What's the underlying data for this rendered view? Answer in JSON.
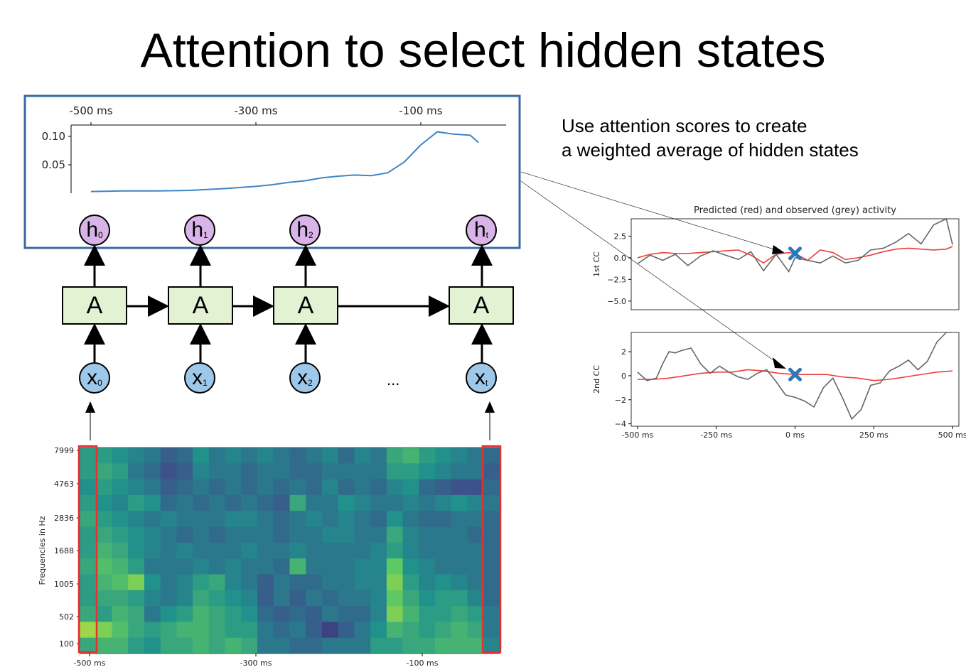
{
  "title": "Attention to select hidden states",
  "note": {
    "line1": "Use attention scores to create",
    "line2": "a weighted average of hidden states"
  },
  "rnn": {
    "hidden_labels": [
      "h0",
      "h1",
      "h2",
      "ht"
    ],
    "cell_label": "A",
    "input_labels": [
      "x0",
      "x1",
      "x2",
      "xt"
    ],
    "ellipsis": "..."
  },
  "chart_data": [
    {
      "type": "line",
      "title": "",
      "xticks": [
        "-500 ms",
        "-300 ms",
        "-100 ms"
      ],
      "yticks": [
        "0.10",
        "0.05"
      ],
      "xlim": [
        -525,
        -20
      ],
      "ylim": [
        0.0,
        0.12
      ],
      "x": [
        -500,
        -460,
        -420,
        -380,
        -340,
        -300,
        -280,
        -260,
        -240,
        -220,
        -200,
        -180,
        -160,
        -140,
        -120,
        -100,
        -80,
        -60,
        -40,
        -30
      ],
      "values": [
        0.003,
        0.004,
        0.004,
        0.005,
        0.008,
        0.012,
        0.015,
        0.019,
        0.022,
        0.027,
        0.03,
        0.032,
        0.031,
        0.036,
        0.055,
        0.085,
        0.108,
        0.104,
        0.102,
        0.089
      ],
      "color": "#3d86c6"
    },
    {
      "type": "line",
      "title": "Predicted (red) and observed (grey) activity",
      "ylabel": "1st CC",
      "yticks": [
        "2.5",
        "0.0",
        "−2.5",
        "−5.0"
      ],
      "xlim": [
        -520,
        520
      ],
      "ylim": [
        -6,
        4.5
      ],
      "series": [
        {
          "name": "red",
          "color": "#f03c3c",
          "x": [
            -500,
            -460,
            -420,
            -380,
            -340,
            -300,
            -260,
            -220,
            -180,
            -140,
            -100,
            -60,
            -20,
            0,
            40,
            80,
            120,
            160,
            200,
            240,
            280,
            320,
            360,
            400,
            440,
            480,
            500
          ],
          "values": [
            0.0,
            0.4,
            0.6,
            0.5,
            0.5,
            0.6,
            0.7,
            0.8,
            0.9,
            0.3,
            -0.6,
            0.4,
            0.6,
            0.5,
            -0.3,
            0.9,
            0.6,
            -0.2,
            0.0,
            0.3,
            0.7,
            1.0,
            1.1,
            1.0,
            0.9,
            1.0,
            1.3
          ]
        },
        {
          "name": "grey",
          "color": "#666666",
          "x": [
            -500,
            -460,
            -420,
            -380,
            -340,
            -300,
            -260,
            -220,
            -180,
            -140,
            -100,
            -60,
            -20,
            0,
            40,
            80,
            120,
            160,
            200,
            240,
            280,
            320,
            360,
            400,
            440,
            480,
            500
          ],
          "values": [
            -0.7,
            0.3,
            -0.3,
            0.4,
            -0.9,
            0.2,
            0.8,
            0.3,
            -0.2,
            0.7,
            -1.5,
            0.4,
            -1.6,
            0.0,
            -0.3,
            -0.6,
            0.2,
            -0.6,
            -0.3,
            0.9,
            1.1,
            1.8,
            2.8,
            1.6,
            3.8,
            4.5,
            1.5
          ]
        }
      ],
      "marker": {
        "x": 0,
        "y": 0.5,
        "color": "#2a7ab8"
      }
    },
    {
      "type": "line",
      "title": "",
      "ylabel": "2nd CC",
      "xticks": [
        "-500 ms",
        "-250 ms",
        "0 ms",
        "250 ms",
        "500 ms"
      ],
      "yticks": [
        "2",
        "0",
        "−2",
        "−4"
      ],
      "xlim": [
        -520,
        520
      ],
      "ylim": [
        -4.2,
        3.6
      ],
      "series": [
        {
          "name": "red",
          "color": "#f03c3c",
          "x": [
            -500,
            -450,
            -400,
            -350,
            -300,
            -250,
            -200,
            -150,
            -100,
            -50,
            0,
            50,
            100,
            150,
            200,
            250,
            300,
            350,
            400,
            450,
            500
          ],
          "values": [
            -0.3,
            -0.3,
            -0.2,
            0.0,
            0.2,
            0.3,
            0.3,
            0.5,
            0.4,
            0.2,
            0.1,
            0.1,
            0.1,
            -0.1,
            -0.2,
            -0.4,
            -0.3,
            -0.1,
            0.1,
            0.3,
            0.4
          ]
        },
        {
          "name": "grey",
          "color": "#666666",
          "x": [
            -500,
            -470,
            -440,
            -420,
            -400,
            -380,
            -360,
            -330,
            -300,
            -270,
            -240,
            -210,
            -180,
            -150,
            -120,
            -90,
            -60,
            -30,
            0,
            30,
            60,
            90,
            120,
            150,
            180,
            210,
            240,
            270,
            300,
            330,
            360,
            390,
            420,
            450,
            480,
            500
          ],
          "values": [
            0.3,
            -0.4,
            -0.2,
            1.0,
            2.0,
            1.9,
            2.1,
            2.3,
            1.0,
            0.2,
            0.8,
            0.3,
            -0.1,
            -0.3,
            0.2,
            0.5,
            -0.5,
            -1.6,
            -1.8,
            -2.1,
            -2.6,
            -1.0,
            -0.2,
            -1.8,
            -3.6,
            -2.8,
            -0.8,
            -0.6,
            0.4,
            0.8,
            1.3,
            0.5,
            1.2,
            2.8,
            3.6,
            3.6
          ]
        }
      ],
      "marker": {
        "x": 0,
        "y": 0.1,
        "color": "#2a7ab8"
      }
    },
    {
      "type": "heatmap",
      "title": "",
      "ylabel": "Frequencies in Hz",
      "yticks": [
        "7999",
        "4763",
        "2836",
        "1688",
        "1005",
        "502",
        "100"
      ],
      "xticks": [
        "-500 ms",
        "-300 ms",
        "-100 ms"
      ],
      "colormap": "viridis",
      "cols": 26,
      "rows": 13,
      "values": [
        [
          0.55,
          0.55,
          0.5,
          0.45,
          0.4,
          0.3,
          0.35,
          0.5,
          0.4,
          0.45,
          0.4,
          0.45,
          0.4,
          0.35,
          0.4,
          0.45,
          0.35,
          0.45,
          0.4,
          0.6,
          0.65,
          0.55,
          0.5,
          0.45,
          0.4,
          0.35
        ],
        [
          0.55,
          0.6,
          0.55,
          0.4,
          0.35,
          0.25,
          0.3,
          0.45,
          0.4,
          0.4,
          0.35,
          0.4,
          0.4,
          0.35,
          0.35,
          0.4,
          0.4,
          0.4,
          0.4,
          0.55,
          0.55,
          0.5,
          0.45,
          0.4,
          0.4,
          0.3
        ],
        [
          0.5,
          0.55,
          0.5,
          0.45,
          0.4,
          0.3,
          0.35,
          0.4,
          0.35,
          0.4,
          0.35,
          0.4,
          0.35,
          0.4,
          0.35,
          0.45,
          0.35,
          0.4,
          0.35,
          0.45,
          0.5,
          0.35,
          0.3,
          0.25,
          0.25,
          0.35
        ],
        [
          0.55,
          0.5,
          0.45,
          0.55,
          0.5,
          0.35,
          0.4,
          0.35,
          0.4,
          0.35,
          0.4,
          0.35,
          0.3,
          0.6,
          0.4,
          0.4,
          0.5,
          0.45,
          0.4,
          0.4,
          0.45,
          0.4,
          0.45,
          0.5,
          0.45,
          0.4
        ],
        [
          0.6,
          0.55,
          0.5,
          0.45,
          0.4,
          0.45,
          0.4,
          0.4,
          0.4,
          0.45,
          0.45,
          0.4,
          0.35,
          0.4,
          0.45,
          0.4,
          0.45,
          0.4,
          0.35,
          0.5,
          0.4,
          0.35,
          0.35,
          0.4,
          0.4,
          0.35
        ],
        [
          0.55,
          0.6,
          0.55,
          0.5,
          0.45,
          0.4,
          0.35,
          0.4,
          0.35,
          0.4,
          0.4,
          0.4,
          0.35,
          0.4,
          0.4,
          0.45,
          0.45,
          0.4,
          0.4,
          0.6,
          0.45,
          0.4,
          0.4,
          0.4,
          0.35,
          0.35
        ],
        [
          0.55,
          0.65,
          0.6,
          0.5,
          0.45,
          0.4,
          0.45,
          0.4,
          0.4,
          0.4,
          0.45,
          0.4,
          0.4,
          0.45,
          0.4,
          0.4,
          0.4,
          0.4,
          0.45,
          0.55,
          0.45,
          0.4,
          0.4,
          0.4,
          0.4,
          0.35
        ],
        [
          0.6,
          0.7,
          0.65,
          0.55,
          0.4,
          0.4,
          0.4,
          0.45,
          0.4,
          0.45,
          0.4,
          0.4,
          0.35,
          0.65,
          0.4,
          0.4,
          0.4,
          0.45,
          0.45,
          0.75,
          0.5,
          0.45,
          0.4,
          0.4,
          0.4,
          0.35
        ],
        [
          0.55,
          0.65,
          0.7,
          0.8,
          0.5,
          0.4,
          0.45,
          0.55,
          0.6,
          0.45,
          0.4,
          0.3,
          0.4,
          0.35,
          0.35,
          0.4,
          0.4,
          0.45,
          0.45,
          0.8,
          0.55,
          0.45,
          0.5,
          0.45,
          0.4,
          0.35
        ],
        [
          0.55,
          0.6,
          0.6,
          0.55,
          0.45,
          0.4,
          0.45,
          0.6,
          0.55,
          0.5,
          0.45,
          0.3,
          0.4,
          0.3,
          0.4,
          0.35,
          0.4,
          0.4,
          0.45,
          0.75,
          0.6,
          0.5,
          0.55,
          0.55,
          0.45,
          0.35
        ],
        [
          0.6,
          0.55,
          0.65,
          0.6,
          0.4,
          0.5,
          0.55,
          0.65,
          0.6,
          0.55,
          0.5,
          0.35,
          0.3,
          0.35,
          0.3,
          0.4,
          0.35,
          0.35,
          0.45,
          0.8,
          0.65,
          0.55,
          0.55,
          0.6,
          0.55,
          0.4
        ],
        [
          0.85,
          0.8,
          0.7,
          0.6,
          0.55,
          0.6,
          0.65,
          0.65,
          0.6,
          0.55,
          0.55,
          0.4,
          0.35,
          0.4,
          0.3,
          0.2,
          0.3,
          0.4,
          0.5,
          0.65,
          0.6,
          0.55,
          0.6,
          0.65,
          0.6,
          0.4
        ],
        [
          0.6,
          0.65,
          0.65,
          0.55,
          0.5,
          0.6,
          0.6,
          0.65,
          0.6,
          0.65,
          0.6,
          0.4,
          0.4,
          0.35,
          0.35,
          0.4,
          0.4,
          0.4,
          0.55,
          0.55,
          0.6,
          0.6,
          0.65,
          0.65,
          0.65,
          0.45
        ]
      ],
      "highlight_color": "#e8302f"
    }
  ]
}
